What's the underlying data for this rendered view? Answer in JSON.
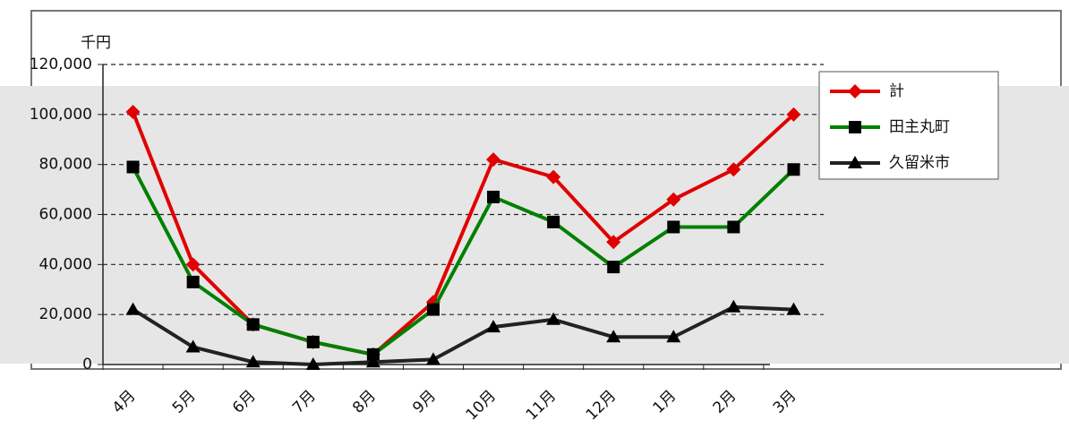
{
  "chart_data": {
    "type": "line",
    "y_label": "千円",
    "categories": [
      "4月",
      "5月",
      "6月",
      "7月",
      "8月",
      "9月",
      "10月",
      "11月",
      "12月",
      "1月",
      "2月",
      "3月"
    ],
    "series": [
      {
        "name": "計",
        "color": "#e00000",
        "marker": "diamond",
        "values": [
          101000,
          40000,
          16000,
          9000,
          4000,
          25000,
          82000,
          75000,
          49000,
          66000,
          78000,
          100000
        ]
      },
      {
        "name": "田主丸町",
        "color": "#008000",
        "marker": "square",
        "values": [
          79000,
          33000,
          16000,
          9000,
          4000,
          22000,
          67000,
          57000,
          39000,
          55000,
          55000,
          78000
        ]
      },
      {
        "name": "久留米市",
        "color": "#222222",
        "marker": "triangle",
        "values": [
          22000,
          7000,
          1000,
          0,
          1000,
          2000,
          15000,
          18000,
          11000,
          11000,
          23000,
          22000
        ]
      }
    ],
    "ylim": [
      0,
      120000
    ],
    "yticks": [
      0,
      {
        "value": 20000,
        "label": "20,000"
      },
      {
        "value": 40000,
        "label": "40,000"
      },
      {
        "value": 60000,
        "label": "60,000"
      },
      {
        "value": 80000,
        "label": "80,000"
      },
      {
        "value": 100000,
        "label": "100,000"
      },
      {
        "value": 120000,
        "label": "120,000"
      }
    ],
    "grid": true,
    "legend": "top-right"
  }
}
